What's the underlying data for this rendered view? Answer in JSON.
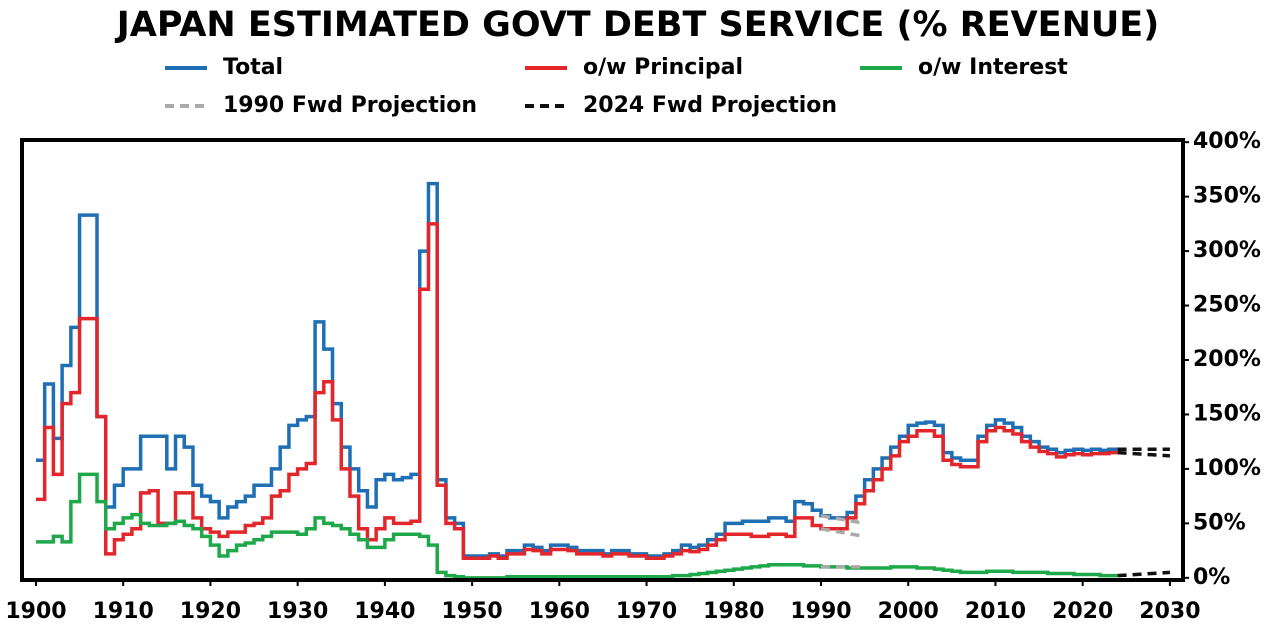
{
  "chart_data": {
    "type": "step",
    "title": "JAPAN ESTIMATED GOVT DEBT SERVICE (% REVENUE)",
    "x": [
      1900,
      1901,
      1902,
      1903,
      1904,
      1905,
      1906,
      1907,
      1908,
      1909,
      1910,
      1911,
      1912,
      1913,
      1914,
      1915,
      1916,
      1917,
      1918,
      1919,
      1920,
      1921,
      1922,
      1923,
      1924,
      1925,
      1926,
      1927,
      1928,
      1929,
      1930,
      1931,
      1932,
      1933,
      1934,
      1935,
      1936,
      1937,
      1938,
      1939,
      1940,
      1941,
      1942,
      1943,
      1944,
      1945,
      1946,
      1947,
      1948,
      1949,
      1950,
      1951,
      1952,
      1953,
      1954,
      1955,
      1956,
      1957,
      1958,
      1959,
      1960,
      1961,
      1962,
      1963,
      1964,
      1965,
      1966,
      1967,
      1968,
      1969,
      1970,
      1971,
      1972,
      1973,
      1974,
      1975,
      1976,
      1977,
      1978,
      1979,
      1980,
      1981,
      1982,
      1983,
      1984,
      1985,
      1986,
      1987,
      1988,
      1989,
      1990,
      1991,
      1992,
      1993,
      1994,
      1995,
      1996,
      1997,
      1998,
      1999,
      2000,
      2001,
      2002,
      2003,
      2004,
      2005,
      2006,
      2007,
      2008,
      2009,
      2010,
      2011,
      2012,
      2013,
      2014,
      2015,
      2016,
      2017,
      2018,
      2019,
      2020,
      2021,
      2022,
      2023,
      2024
    ],
    "series": [
      {
        "name": "Total",
        "color": "#1f6fb4",
        "values": [
          108,
          178,
          128,
          195,
          230,
          333,
          333,
          148,
          65,
          85,
          100,
          100,
          130,
          130,
          130,
          100,
          130,
          120,
          85,
          75,
          70,
          55,
          65,
          70,
          75,
          85,
          85,
          100,
          120,
          140,
          145,
          148,
          235,
          210,
          160,
          120,
          100,
          80,
          65,
          90,
          95,
          90,
          92,
          95,
          300,
          362,
          90,
          55,
          50,
          20,
          20,
          20,
          22,
          20,
          25,
          25,
          30,
          28,
          25,
          30,
          30,
          28,
          25,
          25,
          25,
          22,
          25,
          25,
          22,
          22,
          20,
          20,
          22,
          25,
          30,
          28,
          30,
          35,
          40,
          50,
          50,
          52,
          52,
          52,
          55,
          55,
          52,
          70,
          68,
          62,
          57,
          55,
          55,
          60,
          75,
          90,
          100,
          110,
          120,
          130,
          140,
          142,
          143,
          140,
          115,
          110,
          108,
          108,
          130,
          140,
          145,
          142,
          138,
          130,
          125,
          120,
          118,
          115,
          117,
          118,
          117,
          118,
          117,
          118,
          118
        ]
      },
      {
        "name": "o/w Principal",
        "color": "#e3262b",
        "values": [
          72,
          138,
          95,
          160,
          170,
          238,
          238,
          148,
          22,
          35,
          40,
          45,
          78,
          80,
          50,
          50,
          78,
          78,
          55,
          45,
          42,
          38,
          42,
          42,
          48,
          50,
          55,
          75,
          80,
          95,
          100,
          105,
          170,
          180,
          145,
          100,
          75,
          45,
          35,
          45,
          55,
          50,
          50,
          52,
          265,
          325,
          85,
          50,
          45,
          18,
          18,
          18,
          20,
          18,
          22,
          22,
          26,
          25,
          22,
          26,
          26,
          25,
          22,
          22,
          22,
          20,
          22,
          22,
          20,
          20,
          18,
          18,
          20,
          22,
          25,
          24,
          26,
          30,
          35,
          40,
          40,
          40,
          38,
          38,
          40,
          40,
          38,
          55,
          55,
          48,
          45,
          45,
          45,
          55,
          68,
          80,
          90,
          100,
          112,
          125,
          130,
          135,
          135,
          130,
          108,
          104,
          102,
          102,
          125,
          135,
          138,
          135,
          132,
          125,
          120,
          116,
          114,
          111,
          113,
          114,
          113,
          114,
          114,
          115,
          115
        ]
      },
      {
        "name": "o/w Interest",
        "color": "#1ea84a",
        "values": [
          33,
          33,
          38,
          33,
          70,
          95,
          95,
          70,
          45,
          50,
          55,
          58,
          50,
          48,
          48,
          50,
          52,
          48,
          45,
          38,
          30,
          20,
          25,
          30,
          32,
          35,
          38,
          42,
          42,
          42,
          40,
          45,
          55,
          50,
          48,
          45,
          40,
          35,
          28,
          28,
          35,
          40,
          40,
          40,
          38,
          30,
          5,
          2,
          1,
          0,
          0,
          0,
          0,
          0,
          1,
          1,
          1,
          1,
          1,
          1,
          1,
          1,
          1,
          1,
          1,
          1,
          1,
          1,
          1,
          1,
          1,
          1,
          1,
          2,
          2,
          3,
          4,
          5,
          6,
          7,
          8,
          9,
          10,
          11,
          12,
          12,
          12,
          12,
          11,
          11,
          10,
          10,
          10,
          9,
          9,
          9,
          9,
          9,
          10,
          10,
          10,
          9,
          9,
          8,
          7,
          6,
          5,
          5,
          5,
          6,
          6,
          6,
          5,
          5,
          5,
          5,
          4,
          4,
          4,
          3,
          3,
          3,
          2,
          2,
          2
        ]
      },
      {
        "name": "1990 Fwd Projection",
        "color": "#aaaaaa",
        "dashed": true,
        "x": [
          1990,
          1995
        ],
        "lines": [
          [
            57,
            50
          ],
          [
            45,
            38
          ],
          [
            10,
            10
          ]
        ]
      },
      {
        "name": "2024 Fwd Projection",
        "color": "#111111",
        "dashed": true,
        "x": [
          2024,
          2030
        ],
        "lines": [
          [
            118,
            118
          ],
          [
            115,
            112
          ],
          [
            2,
            5
          ]
        ]
      }
    ],
    "xlim": [
      1898.4,
      2031.5
    ],
    "xticks": [
      1900,
      1910,
      1920,
      1930,
      1940,
      1950,
      1960,
      1970,
      1980,
      1990,
      2000,
      2010,
      2020,
      2030
    ],
    "ylim": [
      -2,
      402
    ],
    "yticks": [
      {
        "value": 0,
        "label": "0%"
      },
      {
        "value": 50,
        "label": "50%"
      },
      {
        "value": 100,
        "label": "100%"
      },
      {
        "value": 150,
        "label": "150%"
      },
      {
        "value": 200,
        "label": "200%"
      },
      {
        "value": 250,
        "label": "250%"
      },
      {
        "value": 300,
        "label": "300%"
      },
      {
        "value": 350,
        "label": "350%"
      },
      {
        "value": 400,
        "label": "400%"
      }
    ],
    "y_axis_side": "right",
    "grid": false
  }
}
